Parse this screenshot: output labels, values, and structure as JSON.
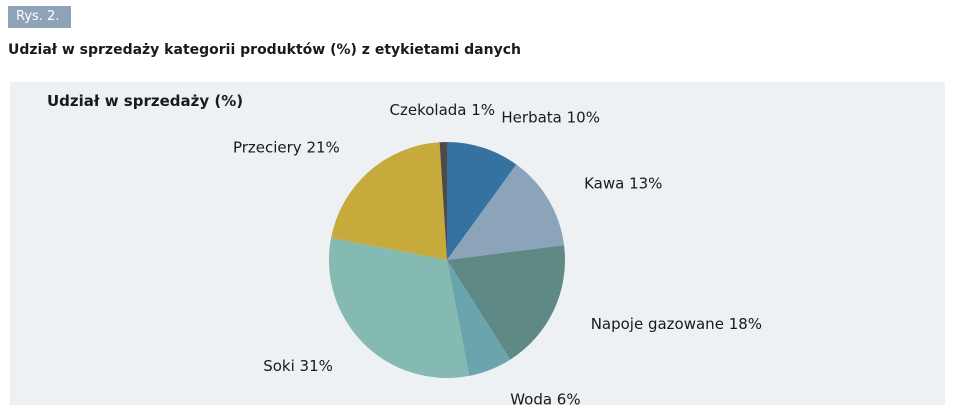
{
  "figure": {
    "tag": "Rys. 2.",
    "title": "Udział w sprzedaży kategorii produktów (%) z etykietami danych"
  },
  "colors": {
    "panel_bg": "#edf1f3",
    "tag_bg": "#8ea3b8"
  },
  "chart_data": {
    "type": "pie",
    "title": "Udział w sprzedaży (%)",
    "unit": "%",
    "legend": "none",
    "start_angle_deg": 0,
    "direction": "clockwise",
    "slices": [
      {
        "label": "Herbata",
        "value": 10,
        "display": "Herbata 10%",
        "color": "#3572a0"
      },
      {
        "label": "Kawa",
        "value": 13,
        "display": "Kawa 13%",
        "color": "#8ba4b9"
      },
      {
        "label": "Napoje gazowane",
        "value": 18,
        "display": "Napoje gazowane 18%",
        "color": "#5f8984"
      },
      {
        "label": "Woda",
        "value": 6,
        "display": "Woda 6%",
        "color": "#6aa4ad"
      },
      {
        "label": "Soki",
        "value": 31,
        "display": "Soki 31%",
        "color": "#85bab2"
      },
      {
        "label": "Przeciery",
        "value": 21,
        "display": "Przeciery 21%",
        "color": "#c6aa3c"
      },
      {
        "label": "Czekolada",
        "value": 1,
        "display": "Czekolada 1%",
        "color": "#4e4a47"
      }
    ]
  }
}
